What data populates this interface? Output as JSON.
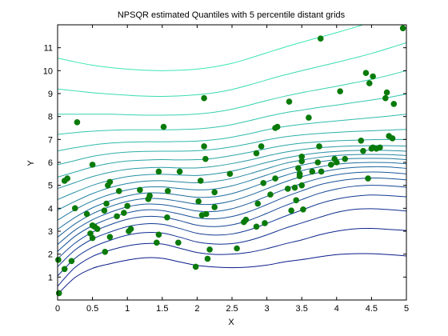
{
  "chart_data": {
    "type": "line",
    "title": "NPSQR estimated Quantiles with 5 percentile distant grids",
    "xlabel": "X",
    "ylabel": "Y",
    "xlim": [
      0,
      5
    ],
    "ylim": [
      0,
      12
    ],
    "xticks": [
      "0",
      "0.5",
      "1",
      "1.5",
      "2",
      "2.5",
      "3",
      "3.5",
      "4",
      "4.5",
      "5"
    ],
    "yticks": [
      "1",
      "2",
      "3",
      "4",
      "5",
      "6",
      "7",
      "8",
      "9",
      "10",
      "11"
    ],
    "grid": false,
    "colors": {
      "low": "#0a1a8c",
      "high": "#3ce6b4",
      "points": "#0a7a0a"
    },
    "x": [
      0,
      0.25,
      0.5,
      0.75,
      1.0,
      1.25,
      1.5,
      1.75,
      2.0,
      2.25,
      2.5,
      2.75,
      3.0,
      3.25,
      3.5,
      3.75,
      4.0,
      4.25,
      4.5,
      4.75,
      5.0
    ],
    "series": [
      {
        "values": [
          0.25,
          0.98,
          1.38,
          1.58,
          1.74,
          1.84,
          1.82,
          1.66,
          1.51,
          1.44,
          1.41,
          1.44,
          1.52,
          1.66,
          1.76,
          1.88,
          1.98,
          2.02,
          2.02,
          1.98,
          1.92
        ]
      },
      {
        "values": [
          0.6,
          1.42,
          1.9,
          2.17,
          2.36,
          2.46,
          2.44,
          2.26,
          2.07,
          1.99,
          2.0,
          2.08,
          2.24,
          2.44,
          2.62,
          2.84,
          3.0,
          3.1,
          3.12,
          3.08,
          3.03
        ]
      },
      {
        "values": [
          1.05,
          1.82,
          2.3,
          2.6,
          2.83,
          2.94,
          2.92,
          2.74,
          2.53,
          2.44,
          2.46,
          2.6,
          2.84,
          3.12,
          3.36,
          3.6,
          3.82,
          3.95,
          3.98,
          3.94,
          3.88
        ]
      },
      {
        "values": [
          1.45,
          2.18,
          2.66,
          2.96,
          3.2,
          3.32,
          3.3,
          3.12,
          2.91,
          2.83,
          2.88,
          3.06,
          3.34,
          3.64,
          3.92,
          4.2,
          4.4,
          4.52,
          4.58,
          4.55,
          4.5
        ]
      },
      {
        "values": [
          1.8,
          2.48,
          2.96,
          3.28,
          3.52,
          3.64,
          3.62,
          3.46,
          3.26,
          3.2,
          3.28,
          3.48,
          3.78,
          4.1,
          4.38,
          4.65,
          4.84,
          4.96,
          5.0,
          4.98,
          4.92
        ]
      },
      {
        "values": [
          2.12,
          2.78,
          3.24,
          3.56,
          3.8,
          3.93,
          3.9,
          3.75,
          3.58,
          3.54,
          3.64,
          3.86,
          4.16,
          4.48,
          4.76,
          5.02,
          5.18,
          5.28,
          5.32,
          5.3,
          5.24
        ]
      },
      {
        "values": [
          2.42,
          3.05,
          3.5,
          3.82,
          4.06,
          4.18,
          4.16,
          4.03,
          3.88,
          3.86,
          3.98,
          4.22,
          4.52,
          4.82,
          5.08,
          5.3,
          5.46,
          5.55,
          5.58,
          5.56,
          5.5
        ]
      },
      {
        "values": [
          2.74,
          3.32,
          3.76,
          4.07,
          4.3,
          4.42,
          4.41,
          4.3,
          4.18,
          4.18,
          4.32,
          4.56,
          4.85,
          5.14,
          5.38,
          5.56,
          5.7,
          5.78,
          5.81,
          5.8,
          5.74
        ]
      },
      {
        "values": [
          3.08,
          3.6,
          4.02,
          4.32,
          4.54,
          4.66,
          4.66,
          4.57,
          4.48,
          4.5,
          4.64,
          4.88,
          5.16,
          5.42,
          5.64,
          5.8,
          5.92,
          5.98,
          6.0,
          5.99,
          5.94
        ]
      },
      {
        "values": [
          3.48,
          3.94,
          4.32,
          4.6,
          4.8,
          4.92,
          4.93,
          4.86,
          4.8,
          4.84,
          4.98,
          5.2,
          5.45,
          5.7,
          5.88,
          6.02,
          6.12,
          6.17,
          6.18,
          6.17,
          6.12
        ]
      },
      {
        "values": [
          3.92,
          4.3,
          4.64,
          4.9,
          5.08,
          5.18,
          5.2,
          5.15,
          5.11,
          5.17,
          5.3,
          5.5,
          5.73,
          5.95,
          6.1,
          6.22,
          6.3,
          6.34,
          6.35,
          6.34,
          6.3
        ]
      },
      {
        "values": [
          4.38,
          4.7,
          5.0,
          5.22,
          5.38,
          5.46,
          5.48,
          5.45,
          5.43,
          5.5,
          5.62,
          5.8,
          6.0,
          6.18,
          6.32,
          6.42,
          6.48,
          6.52,
          6.53,
          6.52,
          6.49
        ]
      },
      {
        "values": [
          4.86,
          5.12,
          5.38,
          5.57,
          5.7,
          5.76,
          5.78,
          5.76,
          5.76,
          5.83,
          5.95,
          6.1,
          6.28,
          6.44,
          6.56,
          6.64,
          6.69,
          6.72,
          6.73,
          6.73,
          6.71
        ]
      },
      {
        "values": [
          5.36,
          5.58,
          5.8,
          5.96,
          6.06,
          6.1,
          6.12,
          6.11,
          6.12,
          6.18,
          6.3,
          6.44,
          6.6,
          6.74,
          6.84,
          6.9,
          6.94,
          6.97,
          6.99,
          7.0,
          7.0
        ]
      },
      {
        "values": [
          5.9,
          6.08,
          6.26,
          6.38,
          6.45,
          6.48,
          6.49,
          6.49,
          6.51,
          6.57,
          6.68,
          6.82,
          6.98,
          7.11,
          7.2,
          7.26,
          7.31,
          7.35,
          7.38,
          7.41,
          7.44
        ]
      },
      {
        "values": [
          6.5,
          6.64,
          6.76,
          6.84,
          6.88,
          6.9,
          6.9,
          6.91,
          6.93,
          6.99,
          7.1,
          7.25,
          7.42,
          7.56,
          7.66,
          7.74,
          7.81,
          7.88,
          7.95,
          8.02,
          8.1
        ]
      },
      {
        "values": [
          7.22,
          7.3,
          7.36,
          7.4,
          7.42,
          7.42,
          7.42,
          7.43,
          7.46,
          7.53,
          7.65,
          7.82,
          8.0,
          8.16,
          8.28,
          8.4,
          8.5,
          8.61,
          8.72,
          8.84,
          8.98
        ]
      },
      {
        "values": [
          8.1,
          8.1,
          8.1,
          8.1,
          8.08,
          8.06,
          8.06,
          8.07,
          8.11,
          8.19,
          8.32,
          8.5,
          8.7,
          8.88,
          9.04,
          9.18,
          9.32,
          9.47,
          9.62,
          9.8,
          10.0
        ]
      },
      {
        "values": [
          9.2,
          9.12,
          9.04,
          8.98,
          8.93,
          8.89,
          8.88,
          8.9,
          8.95,
          9.04,
          9.18,
          9.38,
          9.6,
          9.81,
          10.0,
          10.18,
          10.36,
          10.55,
          10.75,
          10.98,
          11.22
        ]
      },
      {
        "values": [
          10.55,
          10.38,
          10.24,
          10.14,
          10.07,
          10.02,
          10.0,
          10.02,
          10.07,
          10.17,
          10.32,
          10.54,
          10.78,
          11.02,
          11.24,
          11.45,
          11.66,
          11.88,
          12.12,
          12.38,
          12.66
        ]
      }
    ],
    "points": [
      [
        0.02,
        0.3
      ],
      [
        0.01,
        1.75
      ],
      [
        0.1,
        1.35
      ],
      [
        0.2,
        1.7
      ],
      [
        0.1,
        5.2
      ],
      [
        0.14,
        5.3
      ],
      [
        0.25,
        4.0
      ],
      [
        0.28,
        7.75
      ],
      [
        0.42,
        3.75
      ],
      [
        0.5,
        3.25
      ],
      [
        0.47,
        2.9
      ],
      [
        0.5,
        2.7
      ],
      [
        0.53,
        3.2
      ],
      [
        0.57,
        3.1
      ],
      [
        0.5,
        5.9
      ],
      [
        0.67,
        3.9
      ],
      [
        0.7,
        4.2
      ],
      [
        0.68,
        2.1
      ],
      [
        0.72,
        5.0
      ],
      [
        0.75,
        5.15
      ],
      [
        0.75,
        2.75
      ],
      [
        0.85,
        3.65
      ],
      [
        0.88,
        4.75
      ],
      [
        0.95,
        3.8
      ],
      [
        1.0,
        4.1
      ],
      [
        1.02,
        3.0
      ],
      [
        1.05,
        3.1
      ],
      [
        1.18,
        4.8
      ],
      [
        1.3,
        4.4
      ],
      [
        1.32,
        4.55
      ],
      [
        1.42,
        2.5
      ],
      [
        1.45,
        2.85
      ],
      [
        1.45,
        5.6
      ],
      [
        1.52,
        7.55
      ],
      [
        1.57,
        3.6
      ],
      [
        1.58,
        4.75
      ],
      [
        1.73,
        2.5
      ],
      [
        1.75,
        5.6
      ],
      [
        1.98,
        1.45
      ],
      [
        2.02,
        4.3
      ],
      [
        2.05,
        5.2
      ],
      [
        2.07,
        3.7
      ],
      [
        2.1,
        6.7
      ],
      [
        2.1,
        8.8
      ],
      [
        2.12,
        6.15
      ],
      [
        2.13,
        3.75
      ],
      [
        2.15,
        1.8
      ],
      [
        2.18,
        2.2
      ],
      [
        2.25,
        4.05
      ],
      [
        2.25,
        4.7
      ],
      [
        2.47,
        5.5
      ],
      [
        2.57,
        2.25
      ],
      [
        2.67,
        3.4
      ],
      [
        2.7,
        3.5
      ],
      [
        2.85,
        3.2
      ],
      [
        2.85,
        6.4
      ],
      [
        2.87,
        4.2
      ],
      [
        2.92,
        6.7
      ],
      [
        2.95,
        5.1
      ],
      [
        2.97,
        3.35
      ],
      [
        3.05,
        4.6
      ],
      [
        3.12,
        5.3
      ],
      [
        3.12,
        7.5
      ],
      [
        3.15,
        7.55
      ],
      [
        3.3,
        4.85
      ],
      [
        3.32,
        8.65
      ],
      [
        3.35,
        3.9
      ],
      [
        3.4,
        4.9
      ],
      [
        3.42,
        4.35
      ],
      [
        3.45,
        5.75
      ],
      [
        3.47,
        5.4
      ],
      [
        3.47,
        5.5
      ],
      [
        3.5,
        6.05
      ],
      [
        3.5,
        6.25
      ],
      [
        3.5,
        5.0
      ],
      [
        3.52,
        3.95
      ],
      [
        3.6,
        7.95
      ],
      [
        3.65,
        5.6
      ],
      [
        3.73,
        6.0
      ],
      [
        3.75,
        6.7
      ],
      [
        3.77,
        11.4
      ],
      [
        3.78,
        5.6
      ],
      [
        3.92,
        5.9
      ],
      [
        3.97,
        6.15
      ],
      [
        4.0,
        6.0
      ],
      [
        4.05,
        9.1
      ],
      [
        4.12,
        6.15
      ],
      [
        4.35,
        6.95
      ],
      [
        4.38,
        6.5
      ],
      [
        4.42,
        9.9
      ],
      [
        4.45,
        5.3
      ],
      [
        4.47,
        9.45
      ],
      [
        4.5,
        6.6
      ],
      [
        4.52,
        9.75
      ],
      [
        4.52,
        6.65
      ],
      [
        4.57,
        6.6
      ],
      [
        4.62,
        6.65
      ],
      [
        4.7,
        8.8
      ],
      [
        4.72,
        9.05
      ],
      [
        4.75,
        7.15
      ],
      [
        4.8,
        7.05
      ],
      [
        4.82,
        8.55
      ],
      [
        4.95,
        11.85
      ]
    ]
  }
}
